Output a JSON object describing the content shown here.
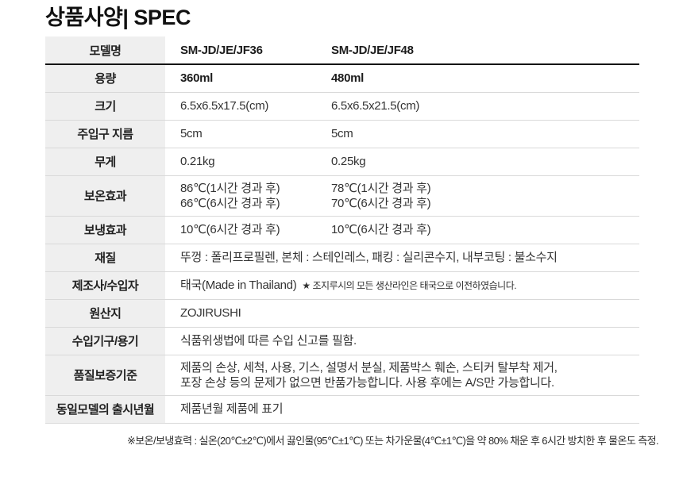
{
  "page": {
    "title": "상품사양| SPEC",
    "footnote": "※보온/보냉효력 : 실온(20℃±2℃)에서 끓인물(95℃±1℃) 또는 차가운물(4℃±1℃)을 약 80% 채운 후 6시간 방치한 후 물온도 측정."
  },
  "colors": {
    "label_background": "#efefef",
    "row_border": "#d9d9d9",
    "header_rule": "#141414",
    "text": "#333333"
  },
  "spec_table": {
    "rows": [
      {
        "label": "모델명",
        "bold": true,
        "header": true,
        "values": [
          [
            "SM-JD/JE/JF36"
          ],
          [
            "SM-JD/JE/JF48"
          ]
        ]
      },
      {
        "label": "용량",
        "bold": true,
        "values": [
          [
            "360ml"
          ],
          [
            "480ml"
          ]
        ]
      },
      {
        "label": "크기",
        "values": [
          [
            "6.5x6.5x17.5(cm)"
          ],
          [
            "6.5x6.5x21.5(cm)"
          ]
        ]
      },
      {
        "label": "주입구 지름",
        "values": [
          [
            "5cm"
          ],
          [
            "5cm"
          ]
        ]
      },
      {
        "label": "무게",
        "values": [
          [
            "0.21kg"
          ],
          [
            "0.25kg"
          ]
        ]
      },
      {
        "label": "보온효과",
        "values": [
          [
            "86℃(1시간 경과 후)",
            "66℃(6시간 경과 후)"
          ],
          [
            "78℃(1시간 경과 후)",
            "70℃(6시간 경과 후)"
          ]
        ]
      },
      {
        "label": "보냉효과",
        "values": [
          [
            "10℃(6시간 경과 후)"
          ],
          [
            "10℃(6시간 경과 후)"
          ]
        ]
      },
      {
        "label": "재질",
        "span": [
          "뚜껑 : 폴리프로필렌, 본체 :  스테인레스, 패킹 : 실리콘수지, 내부코팅 : 불소수지"
        ]
      },
      {
        "label": "제조사/수입자",
        "span": [
          "태국(Made in Thailand)"
        ],
        "note": "★ 조지루시의 모든 생산라인은 태국으로 이전하였습니다."
      },
      {
        "label": "원산지",
        "span": [
          "ZOJIRUSHI"
        ]
      },
      {
        "label": "수입기구/용기",
        "span": [
          "식품위생법에 따른 수입 신고를 필함."
        ]
      },
      {
        "label": "품질보증기준",
        "span": [
          "제품의 손상, 세척, 사용, 기스, 설명서 분실, 제품박스 훼손, 스티커 탈부착 제거,",
          "포장 손상 등의 문제가 없으면 반품가능합니다. 사용 후에는 A/S만 가능합니다."
        ]
      },
      {
        "label": "동일모델의 출시년월",
        "span": [
          "제품년월 제품에 표기"
        ]
      }
    ]
  }
}
